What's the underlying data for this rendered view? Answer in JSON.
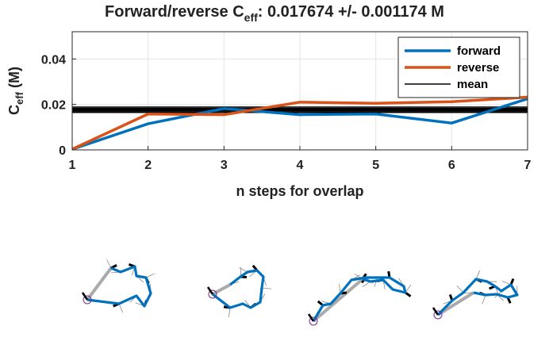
{
  "chart_data": {
    "type": "line",
    "title_main": "Forward/reverse C",
    "title_sub": "eff",
    "title_rest": ": 0.017674 +/- 0.001174 M",
    "xlabel": "n steps for overlap",
    "ylabel_main": "C",
    "ylabel_sub": "eff",
    "ylabel_rest": " (M)",
    "xlim": [
      1,
      7
    ],
    "ylim": [
      0,
      0.052
    ],
    "xticks": [
      "1",
      "2",
      "3",
      "4",
      "5",
      "6",
      "7"
    ],
    "yticks": [
      "0",
      "0.02",
      "0.04"
    ],
    "grid": true,
    "legend_position": "top-right",
    "x": [
      1,
      2,
      3,
      4,
      5,
      6,
      7
    ],
    "series": [
      {
        "name": "forward",
        "color": "#0072BD",
        "values": [
          0.0003,
          0.0115,
          0.0182,
          0.0155,
          0.0158,
          0.0118,
          0.0225
        ]
      },
      {
        "name": "reverse",
        "color": "#D95319",
        "values": [
          0.0003,
          0.0158,
          0.0155,
          0.021,
          0.0205,
          0.0212,
          0.0232
        ]
      }
    ],
    "mean": {
      "name": "mean",
      "color": "#000000",
      "value": 0.017674,
      "std": 0.001174
    }
  },
  "structures": {
    "backbone_color": "#0072BD",
    "closure_color": "#aaaaaa",
    "marker_color": "#7a2a8a",
    "count": 4
  }
}
